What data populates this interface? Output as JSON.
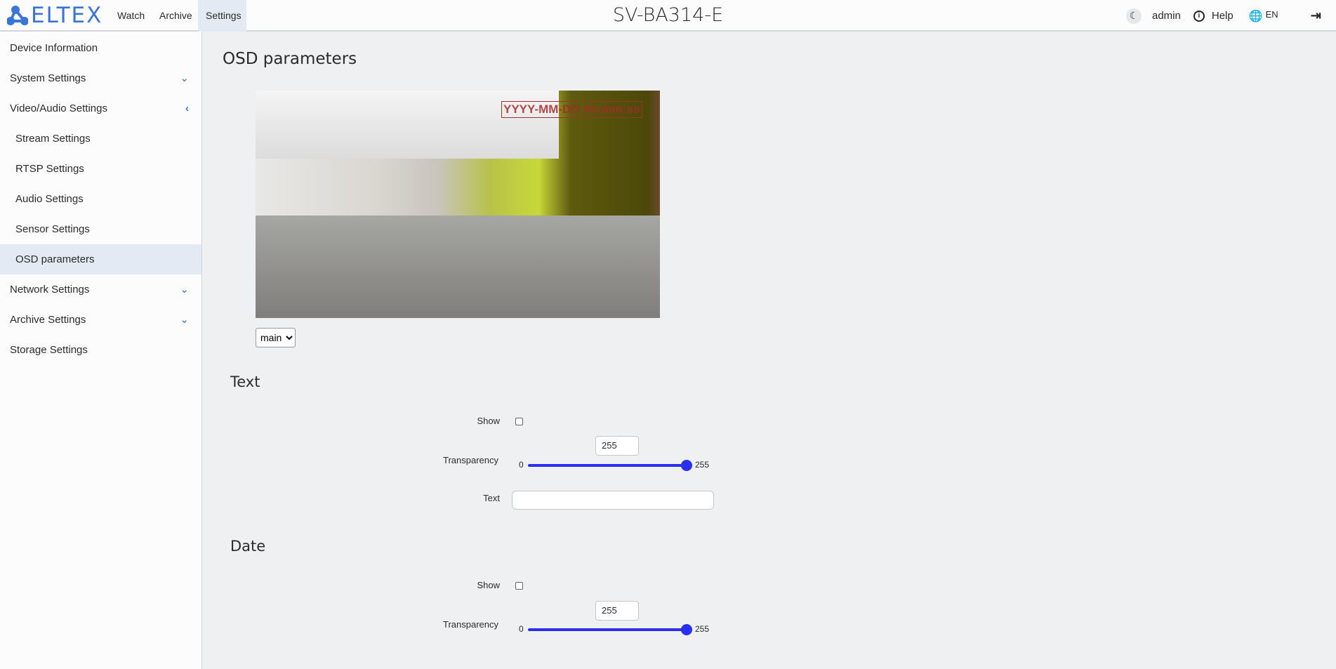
{
  "header": {
    "brand": "ELTEX",
    "nav": [
      "Watch",
      "Archive",
      "Settings"
    ],
    "active_nav": "Settings",
    "title": "SV-BA314-E",
    "user": "admin",
    "help": "Help",
    "lang": "EN"
  },
  "sidebar": {
    "items": [
      {
        "label": "Device Information"
      },
      {
        "label": "System Settings",
        "chevron": "down"
      },
      {
        "label": "Video/Audio Settings",
        "chevron": "left"
      },
      {
        "label": "Stream Settings"
      },
      {
        "label": "RTSP Settings"
      },
      {
        "label": "Audio Settings"
      },
      {
        "label": "Sensor Settings"
      },
      {
        "label": "OSD parameters",
        "active": true
      },
      {
        "label": "Network Settings",
        "chevron": "down"
      },
      {
        "label": "Archive Settings",
        "chevron": "down"
      },
      {
        "label": "Storage Settings"
      }
    ]
  },
  "main": {
    "title": "OSD parameters",
    "osd_overlay": "YYYY-MM-DD hh:mm:ss",
    "stream_select": "main",
    "text_section": {
      "heading": "Text",
      "show_label": "Show",
      "show": false,
      "transparency_label": "Transparency",
      "transparency": "255",
      "min": "0",
      "max": "255",
      "text_label": "Text",
      "text_value": ""
    },
    "date_section": {
      "heading": "Date",
      "show_label": "Show",
      "show": false,
      "transparency_label": "Transparency",
      "transparency": "255",
      "min": "0",
      "max": "255"
    }
  },
  "colors": {
    "accent": "#3b74d8",
    "slider": "#2a2ef0"
  }
}
